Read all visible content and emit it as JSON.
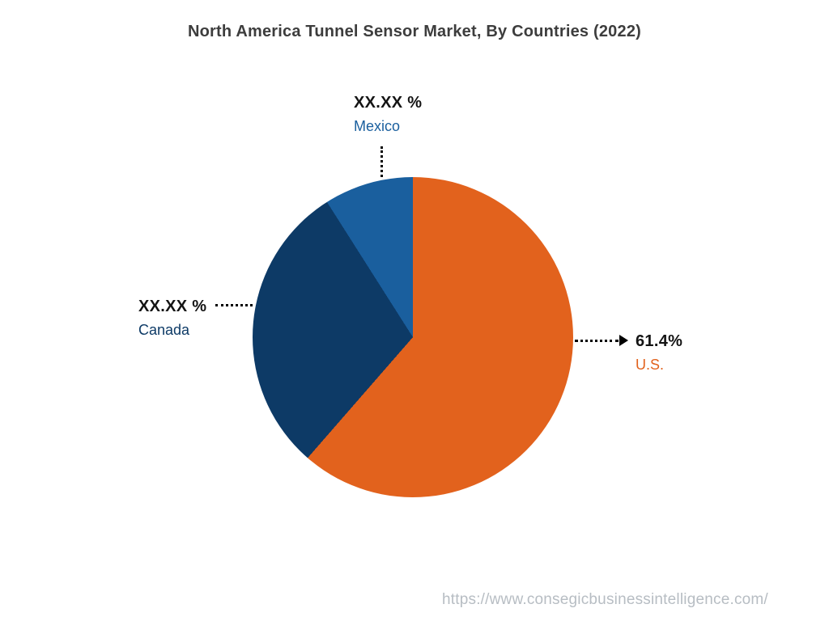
{
  "title": "North America Tunnel Sensor Market, By Countries (2022)",
  "watermark": "https://www.consegicbusinessintelligence.com/",
  "chart_data": {
    "type": "pie",
    "title": "North America Tunnel Sensor Market, By Countries (2022)",
    "start_angle_deg": 0,
    "direction": "clockwise",
    "legend_position": "none",
    "slices": [
      {
        "label": "U.S.",
        "display_value": "61.4%",
        "value": 61.4,
        "color": "#e2621d"
      },
      {
        "label": "Canada",
        "display_value": "XX.XX %",
        "value": 29.6,
        "color": "#0d3a66"
      },
      {
        "label": "Mexico",
        "display_value": "XX.XX %",
        "value": 9.0,
        "color": "#1a5f9e"
      }
    ]
  },
  "labels": {
    "us": {
      "pct": "61.4%",
      "name": "U.S."
    },
    "canada": {
      "pct": "XX.XX %",
      "name": "Canada"
    },
    "mexico": {
      "pct": "XX.XX %",
      "name": "Mexico"
    }
  }
}
